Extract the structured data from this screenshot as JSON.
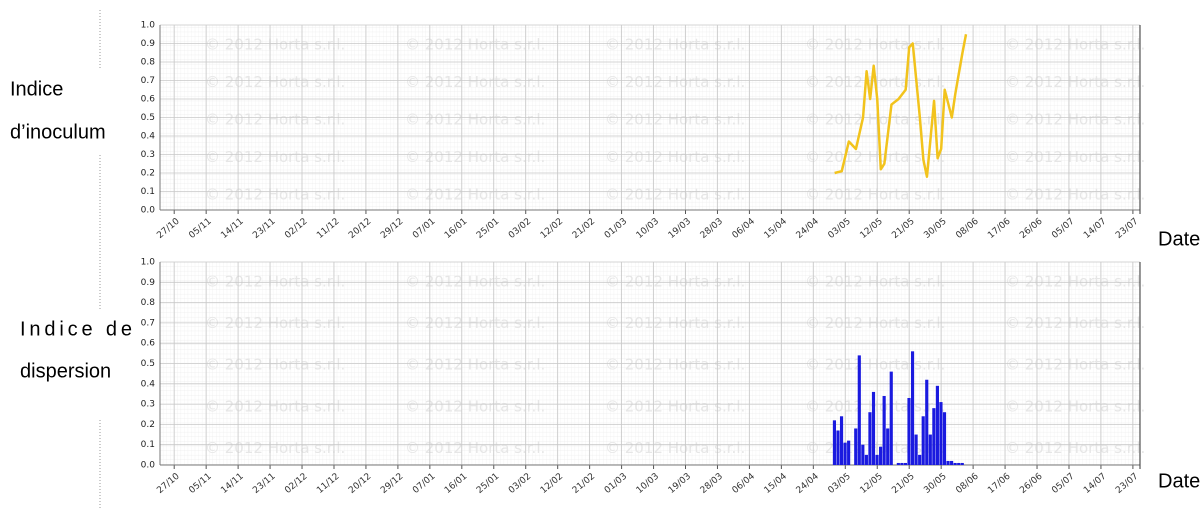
{
  "chart_data": [
    {
      "type": "line",
      "ylabel": [
        "Indice",
        "d’inoculum"
      ],
      "xlabel": "Date",
      "watermark": "© 2012 Horta s.r.l.",
      "x": [
        186,
        188,
        190,
        192,
        194,
        195,
        196,
        197,
        198,
        199,
        200,
        202,
        204,
        206,
        207,
        208,
        210,
        211,
        212,
        214,
        215,
        216,
        217,
        219,
        220,
        222,
        223
      ],
      "values": [
        0.2,
        0.21,
        0.37,
        0.33,
        0.5,
        0.75,
        0.6,
        0.78,
        0.6,
        0.22,
        0.25,
        0.57,
        0.6,
        0.65,
        0.88,
        0.9,
        0.5,
        0.27,
        0.18,
        0.59,
        0.28,
        0.33,
        0.65,
        0.5,
        0.63,
        0.85,
        0.95
      ],
      "color": "#f2c31c",
      "xlim": [
        -4,
        272
      ],
      "ylim": [
        0,
        1
      ],
      "xticks": [
        {
          "value": 0,
          "label": "27/10"
        },
        {
          "value": 9,
          "label": "05/11"
        },
        {
          "value": 18,
          "label": "14/11"
        },
        {
          "value": 27,
          "label": "23/11"
        },
        {
          "value": 36,
          "label": "02/12"
        },
        {
          "value": 45,
          "label": "11/12"
        },
        {
          "value": 54,
          "label": "20/12"
        },
        {
          "value": 63,
          "label": "29/12"
        },
        {
          "value": 72,
          "label": "07/01"
        },
        {
          "value": 81,
          "label": "16/01"
        },
        {
          "value": 90,
          "label": "25/01"
        },
        {
          "value": 99,
          "label": "03/02"
        },
        {
          "value": 108,
          "label": "12/02"
        },
        {
          "value": 117,
          "label": "21/02"
        },
        {
          "value": 126,
          "label": "01/03"
        },
        {
          "value": 135,
          "label": "10/03"
        },
        {
          "value": 144,
          "label": "19/03"
        },
        {
          "value": 153,
          "label": "28/03"
        },
        {
          "value": 162,
          "label": "06/04"
        },
        {
          "value": 171,
          "label": "15/04"
        },
        {
          "value": 180,
          "label": "24/04"
        },
        {
          "value": 189,
          "label": "03/05"
        },
        {
          "value": 198,
          "label": "12/05"
        },
        {
          "value": 207,
          "label": "21/05"
        },
        {
          "value": 216,
          "label": "30/05"
        },
        {
          "value": 225,
          "label": "08/06"
        },
        {
          "value": 234,
          "label": "17/06"
        },
        {
          "value": 243,
          "label": "26/06"
        },
        {
          "value": 252,
          "label": "05/07"
        },
        {
          "value": 261,
          "label": "14/07"
        },
        {
          "value": 270,
          "label": "23/07"
        }
      ],
      "yticks": [
        {
          "value": 0,
          "label": "0.0"
        },
        0.1,
        0.2,
        0.3,
        0.4,
        0.5,
        0.6,
        0.7,
        0.8,
        0.9,
        {
          "value": 1,
          "label": "1.0"
        }
      ],
      "grid": true
    },
    {
      "type": "bar",
      "ylabel": [
        "Indice de",
        "dispersion"
      ],
      "xlabel": "Date",
      "watermark": "© 2012 Horta s.r.l.",
      "x": [
        186,
        187,
        188,
        189,
        190,
        191,
        192,
        193,
        194,
        195,
        196,
        197,
        198,
        199,
        200,
        201,
        202,
        203,
        204,
        205,
        206,
        207,
        208,
        209,
        210,
        211,
        212,
        213,
        214,
        215,
        216,
        217,
        218,
        219,
        220,
        221,
        222
      ],
      "values": [
        0.22,
        0.17,
        0.24,
        0.11,
        0.12,
        0.0,
        0.18,
        0.54,
        0.1,
        0.05,
        0.26,
        0.36,
        0.05,
        0.09,
        0.34,
        0.18,
        0.46,
        0.0,
        0.01,
        0.01,
        0.01,
        0.33,
        0.56,
        0.15,
        0.05,
        0.24,
        0.42,
        0.15,
        0.28,
        0.39,
        0.31,
        0.26,
        0.02,
        0.02,
        0.01,
        0.01,
        0.01
      ],
      "color": "#1a1adf",
      "xlim": [
        -4,
        272
      ],
      "ylim": [
        0,
        1
      ],
      "xticks": [
        {
          "value": 0,
          "label": "27/10"
        },
        {
          "value": 9,
          "label": "05/11"
        },
        {
          "value": 18,
          "label": "14/11"
        },
        {
          "value": 27,
          "label": "23/11"
        },
        {
          "value": 36,
          "label": "02/12"
        },
        {
          "value": 45,
          "label": "11/12"
        },
        {
          "value": 54,
          "label": "20/12"
        },
        {
          "value": 63,
          "label": "29/12"
        },
        {
          "value": 72,
          "label": "07/01"
        },
        {
          "value": 81,
          "label": "16/01"
        },
        {
          "value": 90,
          "label": "25/01"
        },
        {
          "value": 99,
          "label": "03/02"
        },
        {
          "value": 108,
          "label": "12/02"
        },
        {
          "value": 117,
          "label": "21/02"
        },
        {
          "value": 126,
          "label": "01/03"
        },
        {
          "value": 135,
          "label": "10/03"
        },
        {
          "value": 144,
          "label": "19/03"
        },
        {
          "value": 153,
          "label": "28/03"
        },
        {
          "value": 162,
          "label": "06/04"
        },
        {
          "value": 171,
          "label": "15/04"
        },
        {
          "value": 180,
          "label": "24/04"
        },
        {
          "value": 189,
          "label": "03/05"
        },
        {
          "value": 198,
          "label": "12/05"
        },
        {
          "value": 207,
          "label": "21/05"
        },
        {
          "value": 216,
          "label": "30/05"
        },
        {
          "value": 225,
          "label": "08/06"
        },
        {
          "value": 234,
          "label": "17/06"
        },
        {
          "value": 243,
          "label": "26/06"
        },
        {
          "value": 252,
          "label": "05/07"
        },
        {
          "value": 261,
          "label": "14/07"
        },
        {
          "value": 270,
          "label": "23/07"
        }
      ],
      "yticks": [
        {
          "value": 0,
          "label": "0.0"
        },
        0.1,
        0.2,
        0.3,
        0.4,
        0.5,
        0.6,
        0.7,
        0.8,
        0.9,
        {
          "value": 1,
          "label": "1.0"
        }
      ],
      "grid": true
    }
  ]
}
